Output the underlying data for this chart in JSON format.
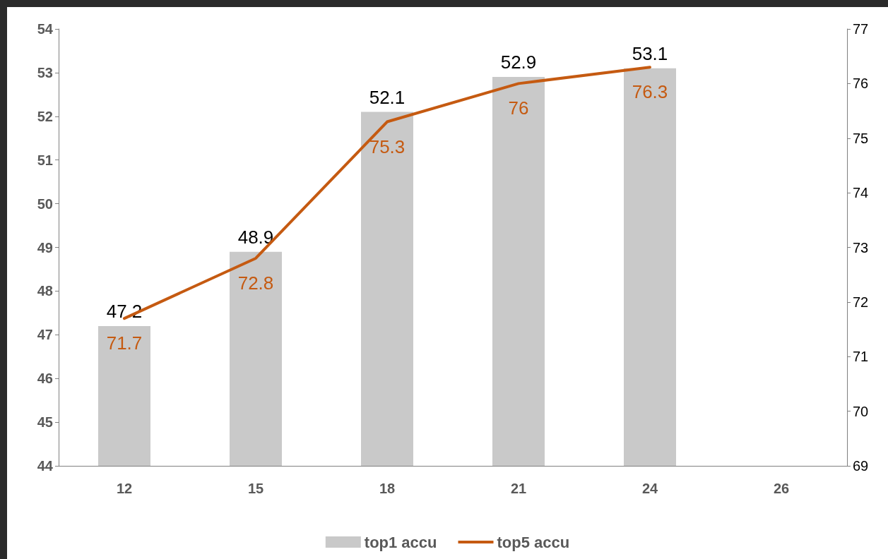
{
  "chart_data": {
    "type": "bar",
    "categories": [
      "12",
      "15",
      "18",
      "21",
      "24",
      "26"
    ],
    "series": [
      {
        "name": "top1 accu",
        "color": "#c9c9c9",
        "values": [
          47.2,
          48.9,
          52.1,
          52.9,
          53.1,
          null
        ]
      },
      {
        "name": "top5 accu",
        "type": "line",
        "axis": "y2",
        "color": "#c55a11",
        "values": [
          71.7,
          72.8,
          75.3,
          76,
          76.3,
          null
        ]
      }
    ],
    "ylim": [
      44,
      54
    ],
    "yticks": [
      44,
      45,
      46,
      47,
      48,
      49,
      50,
      51,
      52,
      53,
      54
    ],
    "y2lim": [
      69,
      77
    ],
    "y2ticks": [
      69,
      70,
      71,
      72,
      73,
      74,
      75,
      76,
      77
    ],
    "data_labels": true,
    "grid": false,
    "legend": "bottom",
    "marker": "none",
    "line_style": "solid"
  }
}
